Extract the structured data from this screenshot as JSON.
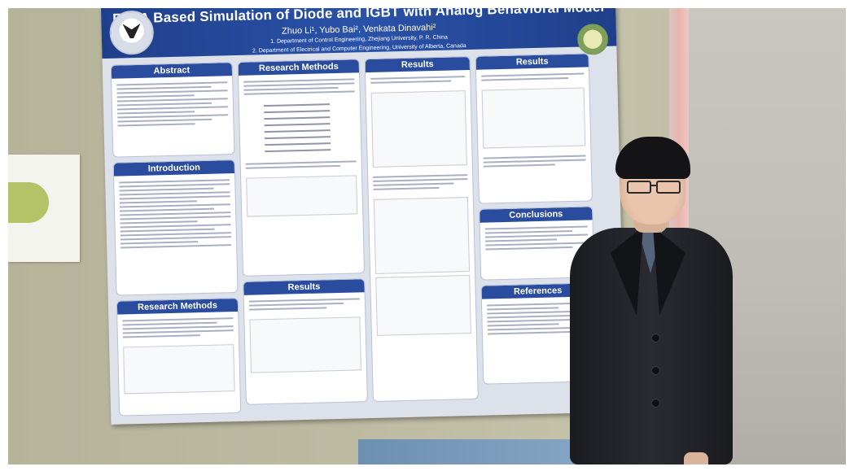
{
  "poster": {
    "title": "FPAA Based Simulation of Diode and IGBT with Analog Behavioral Model",
    "authors": "Zhuo Li¹, Yubo Bai², Venkata Dinavahi²",
    "affiliation_1": "1. Department of Control Engineering, Zhejiang University, P. R. China",
    "affiliation_2": "2. Department of Electrical and Computer Engineering, University of Alberta, Canada",
    "sections": {
      "abstract": "Abstract",
      "introduction": "Introduction",
      "research_methods_left": "Research Methods",
      "research_methods_top": "Research Methods",
      "results_mid": "Results",
      "results_col3": "Results",
      "results_col4": "Results",
      "conclusions": "Conclusions",
      "references": "References"
    }
  }
}
